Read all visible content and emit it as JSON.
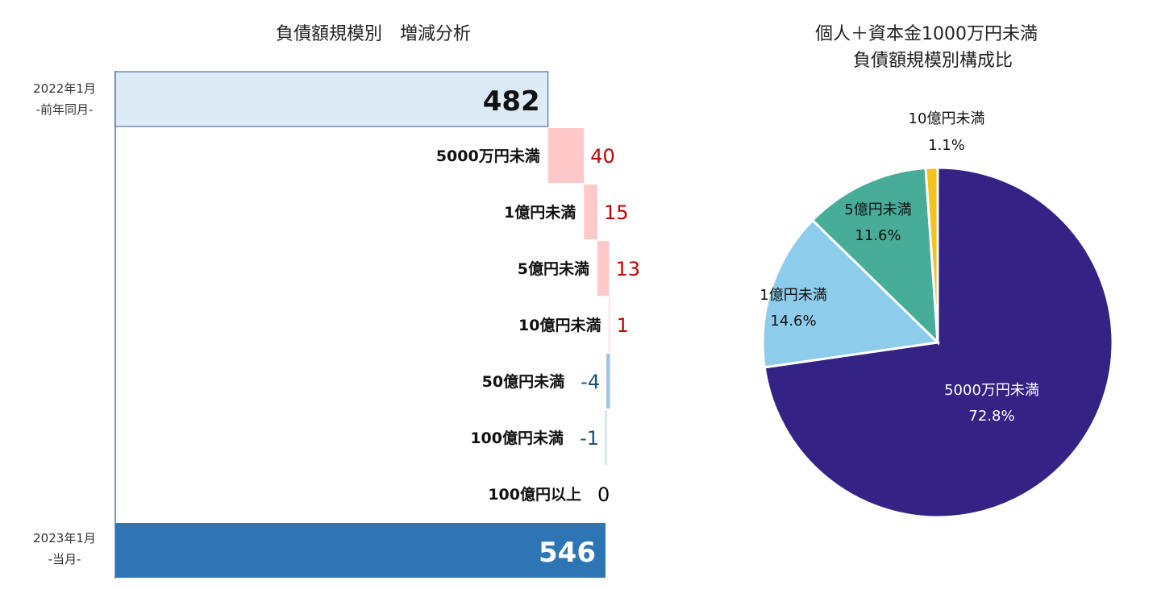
{
  "chart_data": [
    {
      "type": "bar",
      "subtype": "waterfall",
      "title": "負債額規模別　増減分析",
      "start": {
        "label_line1": "2022年1月",
        "label_line2": "-前年同月-",
        "value": 482,
        "value_label": "482",
        "color": "#DDEBF7"
      },
      "end": {
        "label_line1": "2023年1月",
        "label_line2": "-当月-",
        "value": 546,
        "value_label": "546",
        "color": "#2E75B6"
      },
      "categories": [
        "5000万円未満",
        "1億円未満",
        "5億円未満",
        "10億円未満",
        "50億円未満",
        "100億円未満",
        "100億円以上"
      ],
      "values": [
        40,
        15,
        13,
        1,
        -4,
        -1,
        0
      ],
      "value_labels": [
        "40",
        "15",
        "13",
        "1",
        "-4",
        "-1",
        "0"
      ],
      "colors": {
        "increase": "#FFC9C9",
        "decrease": "#9DC3E6",
        "increase_text": "#C00000",
        "decrease_text": "#1F4E79",
        "zero_text": "#000000"
      }
    },
    {
      "type": "pie",
      "title_line1": "個人＋資本金1000万円未満",
      "title_line2": "負債額規模別構成比",
      "slices": [
        {
          "name": "5000万円未満",
          "pct_label": "72.8%",
          "value": 72.8,
          "color": "#342385"
        },
        {
          "name": "1億円未満",
          "pct_label": "14.6%",
          "value": 14.6,
          "color": "#8ECCEB"
        },
        {
          "name": "5億円未満",
          "pct_label": "11.6%",
          "value": 11.6,
          "color": "#47AC98"
        },
        {
          "name": "10億円未満",
          "pct_label": "1.1%",
          "value": 1.1,
          "color": "#F4C21C"
        }
      ]
    }
  ]
}
